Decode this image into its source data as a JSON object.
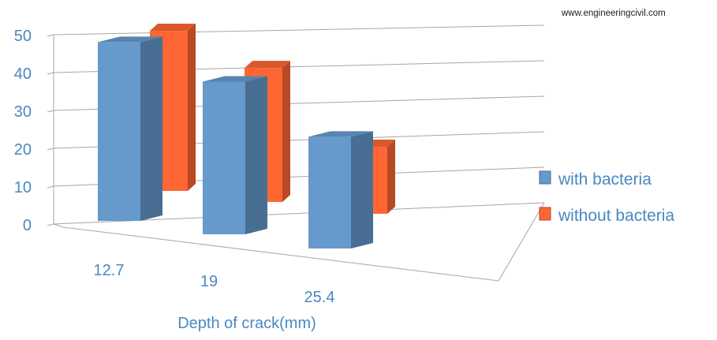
{
  "watermark": "www.engineeringcivil.com",
  "chart_data": {
    "type": "bar",
    "three_d": true,
    "title": "",
    "xlabel": "Depth of crack(mm)",
    "ylabel": "",
    "categories": [
      "12.7",
      "19",
      "25.4"
    ],
    "ylim": [
      0,
      50
    ],
    "yticks": [
      "0",
      "10",
      "20",
      "30",
      "40",
      "50"
    ],
    "grid": true,
    "legend_position": "right",
    "series": [
      {
        "name": "with bacteria",
        "values": [
          48,
          41,
          30
        ],
        "color": "#6699CC"
      },
      {
        "name": "without bacteria",
        "values": [
          43,
          36,
          18
        ],
        "color": "#FF6633"
      }
    ],
    "colors": {
      "axis_text": "#4A88C0",
      "grid": "#A6A6A6"
    }
  }
}
